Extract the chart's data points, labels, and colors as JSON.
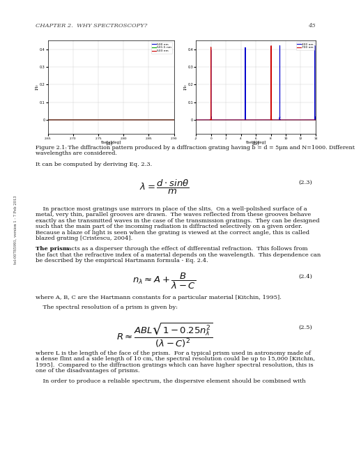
{
  "page_bg": "#e8eef4",
  "content_bg": "#ffffff",
  "header_text": "CHAPTER 2.  WHY SPECTROSCOPY?",
  "header_number": "45",
  "sidebar_text": "tel-00785991, version 1 - 7 Feb 2013",
  "subplot_a_label": "(a)",
  "subplot_b_label": "(b)",
  "subplot_a_xlabel": "theta[deg]",
  "subplot_a_ylabel": "I/I₀",
  "subplot_a_xlim": [
    2.65,
    2.9
  ],
  "subplot_a_ylim": [
    -0.08,
    0.45
  ],
  "subplot_a_legend": [
    "500 nm",
    "501.5 nm",
    "503 nm"
  ],
  "subplot_a_colors": [
    "#0000cc",
    "#00aa00",
    "#cc0000"
  ],
  "subplot_b_xlabel": "theta[deg]",
  "subplot_b_ylabel": "I/I₀",
  "subplot_b_xlim": [
    -2,
    14
  ],
  "subplot_b_ylim": [
    -0.08,
    0.45
  ],
  "subplot_b_legend": [
    "400 nm",
    "700 nm"
  ],
  "subplot_b_colors": [
    "#0000cc",
    "#cc0000"
  ],
  "fig_caption_bold": "Figure 2.1:",
  "fig_caption_rest": " The diffraction pattern produced by a diffraction grating having b = d = 5μm and N=1000. Different wavelengths are considered.",
  "body_text_1": "It can be computed by deriving Eq. 2.3.",
  "eq_23_label": "(2.3)",
  "eq_24_label": "(2.4)",
  "eq_25_label": "(2.5)",
  "para1_indent": "    In practice most gratings use mirrors in place of the slits.  On a well-polished surface of a",
  "para1_lines": [
    "metal, very thin, parallel grooves are drawn.  The waves reflected from these grooves behave",
    "exactly as the transmitted waves in the case of the transmission gratings.  They can be designed",
    "such that the main part of the incoming radiation is diffracted selectively on a given order.",
    "Because a blaze of light is seen when the grating is viewed at the correct angle, this is called",
    "blazed grating [Cristescu, 2004]."
  ],
  "para2_rest_line1": " acts as a disperser through the effect of differential refraction.  This follows from",
  "para2_lines": [
    "the fact that the refractive index of a material depends on the wavelength.  This dependence can",
    "be described by the empirical Hartmann formula - Eq. 2.4."
  ],
  "para3": "where A, B, C are the Hartmann constants for a particular material [Kitchin, 1995].",
  "para4": "    The spectral resolution of a prism is given by:",
  "para5_lines": [
    "where L is the length of the face of the prism.  For a typical prism used in astronomy made of",
    "a dense flint and a side length of 10 cm, the spectral resolution could be up to 15,000 [Kitchin,",
    "1995].  Compared to the diffraction gratings which can have higher spectral resolution, this is",
    "one of the disadvantages of prisms."
  ],
  "para6": "    In order to produce a reliable spectrum, the dispersive element should be combined with"
}
